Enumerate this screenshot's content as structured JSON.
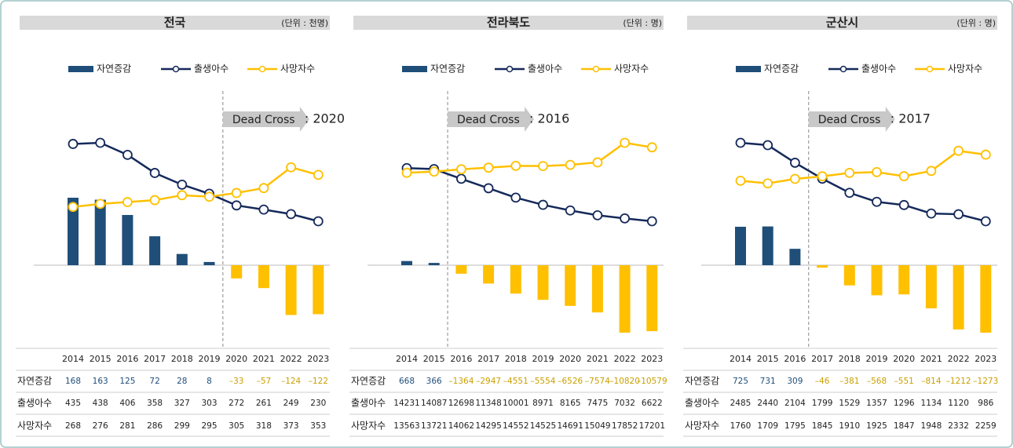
{
  "chart_data": [
    {
      "type": "combo",
      "title": "전국",
      "unit": "(단위 : 천명)",
      "categories": [
        "2014",
        "2015",
        "2016",
        "2017",
        "2018",
        "2019",
        "2020",
        "2021",
        "2022",
        "2023"
      ],
      "annotation": {
        "text": "Dead Cross",
        "value": ": 2020"
      },
      "series": [
        {
          "name": "자연증감",
          "type": "bar",
          "color": "#1f4e79",
          "negative_color": "#ffc000",
          "values": [
            168,
            163,
            125,
            72,
            28,
            8,
            -33,
            -57,
            -124,
            -122
          ],
          "value_labels": [
            "168",
            "163",
            "125",
            "72",
            "28",
            "8",
            "–33",
            "–57",
            "–124",
            "–122"
          ]
        },
        {
          "name": "출생아수",
          "type": "line",
          "color": "#15295a",
          "values": [
            435,
            438,
            406,
            358,
            327,
            303,
            272,
            261,
            249,
            230
          ]
        },
        {
          "name": "사망자수",
          "type": "line",
          "color": "#ffc000",
          "values": [
            268,
            276,
            281,
            286,
            299,
            295,
            305,
            318,
            373,
            353
          ]
        }
      ]
    },
    {
      "type": "combo",
      "title": "전라북도",
      "unit": "(단위 : 명)",
      "categories": [
        "2014",
        "2015",
        "2016",
        "2017",
        "2018",
        "2019",
        "2020",
        "2021",
        "2022",
        "2023"
      ],
      "annotation": {
        "text": "Dead Cross",
        "value": ": 2016"
      },
      "series": [
        {
          "name": "자연증감",
          "type": "bar",
          "color": "#1f4e79",
          "negative_color": "#ffc000",
          "values": [
            668,
            366,
            -1364,
            -2947,
            -4551,
            -5554,
            -6526,
            -7574,
            -10820,
            -10579
          ],
          "value_labels": [
            "668",
            "366",
            "–1364",
            "–2947",
            "–4551",
            "–5554",
            "–6526",
            "–7574",
            "–10820",
            "–10579"
          ]
        },
        {
          "name": "출생아수",
          "type": "line",
          "color": "#15295a",
          "values": [
            14231,
            14087,
            12698,
            11348,
            10001,
            8971,
            8165,
            7475,
            7032,
            6622
          ]
        },
        {
          "name": "사망자수",
          "type": "line",
          "color": "#ffc000",
          "values": [
            13563,
            13721,
            14062,
            14295,
            14552,
            14525,
            14691,
            15049,
            17852,
            17201
          ]
        }
      ]
    },
    {
      "type": "combo",
      "title": "군산시",
      "unit": "(단위 : 명)",
      "categories": [
        "2014",
        "2015",
        "2016",
        "2017",
        "2018",
        "2019",
        "2020",
        "2021",
        "2022",
        "2023"
      ],
      "annotation": {
        "text": "Dead Cross",
        "value": ": 2017"
      },
      "series": [
        {
          "name": "자연증감",
          "type": "bar",
          "color": "#1f4e79",
          "negative_color": "#ffc000",
          "values": [
            725,
            731,
            309,
            -46,
            -381,
            -568,
            -551,
            -814,
            -1212,
            -1273
          ],
          "value_labels": [
            "725",
            "731",
            "309",
            "–46",
            "–381",
            "–568",
            "–551",
            "–814",
            "–1212",
            "–1273"
          ]
        },
        {
          "name": "출생아수",
          "type": "line",
          "color": "#15295a",
          "values": [
            2485,
            2440,
            2104,
            1799,
            1529,
            1357,
            1296,
            1134,
            1120,
            986
          ]
        },
        {
          "name": "사망자수",
          "type": "line",
          "color": "#ffc000",
          "values": [
            1760,
            1709,
            1795,
            1845,
            1910,
            1925,
            1847,
            1948,
            2332,
            2259
          ]
        }
      ]
    }
  ]
}
